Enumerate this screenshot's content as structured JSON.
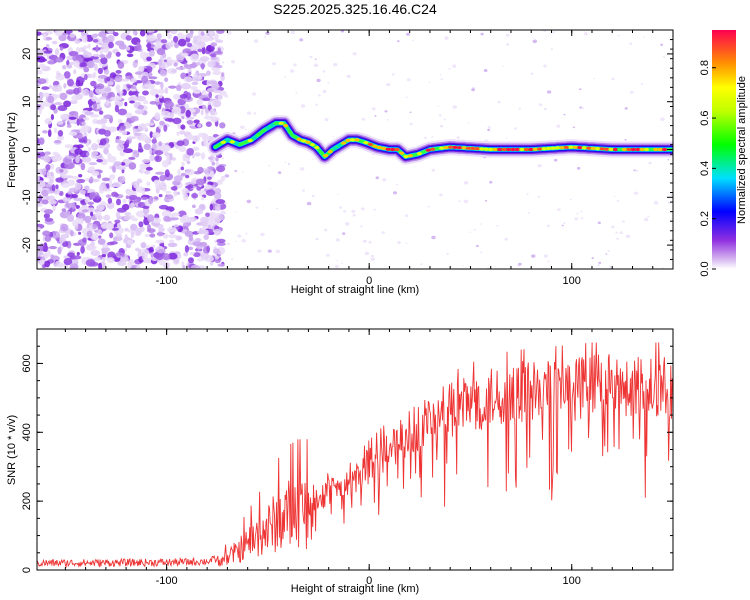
{
  "title": "S225.2025.325.16.46.C24",
  "chart_data": [
    {
      "type": "heatmap",
      "name": "spectrogram",
      "title": "S225.2025.325.16.46.C24",
      "xlabel": "Height of straight line (km)",
      "ylabel": "Frequency (Hz)",
      "xlim": [
        -164,
        150
      ],
      "ylim": [
        -25,
        25
      ],
      "xticks": [
        -100,
        0,
        100
      ],
      "xtick_labels": [
        "-100",
        "0",
        "100"
      ],
      "yticks": [
        -20,
        -10,
        0,
        10,
        20
      ],
      "ytick_labels": [
        "-20",
        "-10",
        "0",
        "10",
        "20"
      ],
      "noise_region_x": [
        -164,
        -76
      ],
      "ridge_frequency": {
        "x": [
          -76,
          -70,
          -64,
          -58,
          -52,
          -46,
          -42,
          -38,
          -34,
          -30,
          -26,
          -22,
          -18,
          -14,
          -10,
          -6,
          -2,
          4,
          10,
          14,
          18,
          24,
          30,
          40,
          60,
          80,
          100,
          120,
          150
        ],
        "y": [
          0.5,
          2,
          1,
          2,
          4,
          5.5,
          5.5,
          3,
          2,
          1.5,
          0.5,
          -1.5,
          0,
          1,
          2,
          2,
          1.5,
          0.5,
          0,
          0,
          -1.5,
          -1,
          0,
          0.5,
          0,
          0,
          0.5,
          0,
          0
        ]
      },
      "colorbar": {
        "label": "Normalized spectral amplitude",
        "range": [
          0,
          0.95
        ],
        "ticks": [
          0.0,
          0.2,
          0.4,
          0.6,
          0.8
        ],
        "tick_labels": [
          "0.0",
          "0.2",
          "0.4",
          "0.6",
          "0.8"
        ]
      }
    },
    {
      "type": "line",
      "name": "snr",
      "xlabel": "Height of straight line (km)",
      "ylabel": "SNR (10 * v/v)",
      "xlim": [
        -164,
        150
      ],
      "ylim": [
        0,
        700
      ],
      "xticks": [
        -100,
        0,
        100
      ],
      "xtick_labels": [
        "-100",
        "0",
        "100"
      ],
      "yticks": [
        0,
        200,
        400,
        600
      ],
      "ytick_labels": [
        "0",
        "200",
        "400",
        "600"
      ],
      "color": "#ee3333",
      "envelope": {
        "x": [
          -164,
          -100,
          -80,
          -70,
          -60,
          -50,
          -45,
          -40,
          -35,
          -30,
          -20,
          -10,
          0,
          10,
          20,
          30,
          50,
          70,
          90,
          110,
          130,
          150
        ],
        "y": [
          20,
          22,
          25,
          40,
          90,
          140,
          170,
          190,
          200,
          200,
          240,
          260,
          320,
          370,
          420,
          460,
          510,
          540,
          550,
          560,
          560,
          560
        ]
      }
    }
  ]
}
